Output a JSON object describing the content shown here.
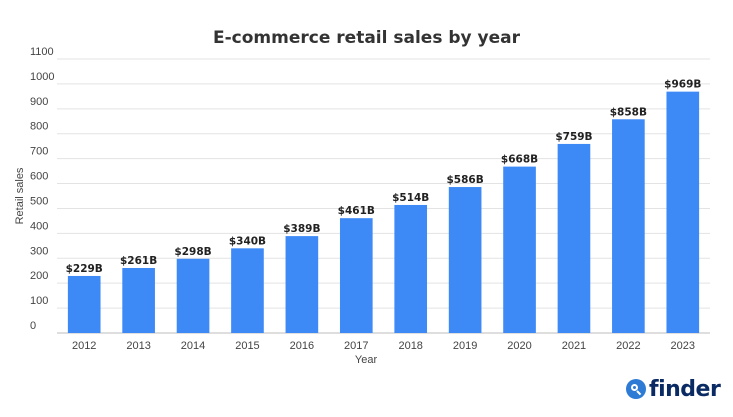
{
  "chart_data": {
    "type": "bar",
    "title": "E-commerce retail sales by year",
    "xlabel": "Year",
    "ylabel": "Retail sales",
    "ylim": [
      0,
      1100
    ],
    "yticks": [
      0,
      100,
      200,
      300,
      400,
      500,
      600,
      700,
      800,
      900,
      1000,
      1100
    ],
    "grid": true,
    "categories": [
      "2012",
      "2013",
      "2014",
      "2015",
      "2016",
      "2017",
      "2018",
      "2019",
      "2020",
      "2021",
      "2022",
      "2023"
    ],
    "values": [
      229,
      261,
      298,
      340,
      389,
      461,
      514,
      586,
      668,
      759,
      858,
      969
    ],
    "data_labels": [
      "$229B",
      "$261B",
      "$298B",
      "$340B",
      "$389B",
      "$461B",
      "$514B",
      "$586B",
      "$668B",
      "$759B",
      "$858B",
      "$969B"
    ],
    "bar_color": "#3d8af7",
    "grid_color": "#e3e3e3"
  },
  "branding": {
    "logo_text": "finder",
    "logo_color": "#0a2a63",
    "logo_mark_color": "#2e7bd6"
  }
}
